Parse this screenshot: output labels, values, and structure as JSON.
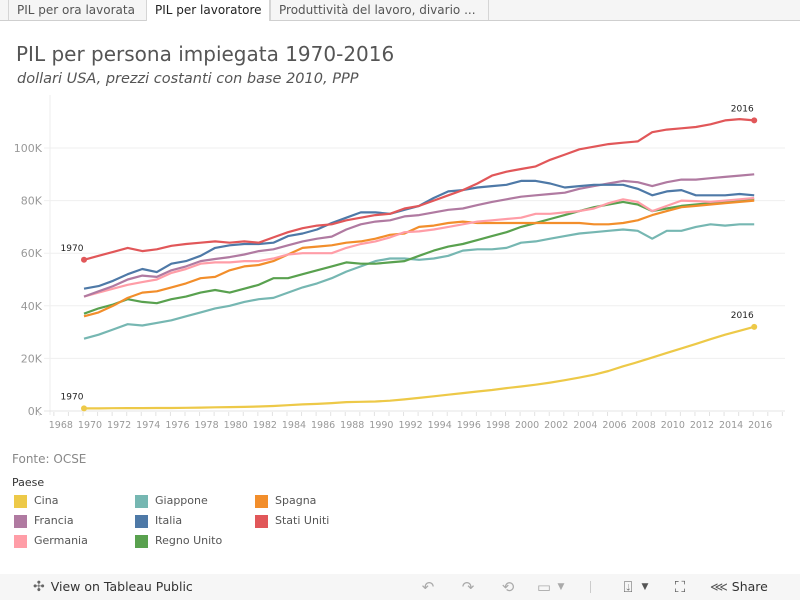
{
  "tabs": [
    {
      "label": "PIL per ora lavorata",
      "active": false
    },
    {
      "label": "PIL per lavoratore",
      "active": true
    },
    {
      "label": "Produttività del lavoro, divario ...",
      "active": false
    }
  ],
  "header": {
    "title": "PIL per persona impiegata 1970-2016",
    "subtitle": "dollari USA, prezzi costanti con base 2010, PPP"
  },
  "source": "Fonte: OCSE",
  "legend": {
    "title": "Paese",
    "items": [
      {
        "label": "Cina",
        "color": "#edc948"
      },
      {
        "label": "Francia",
        "color": "#b07aa1"
      },
      {
        "label": "Germania",
        "color": "#ff9da7"
      },
      {
        "label": "Giappone",
        "color": "#76b7b2"
      },
      {
        "label": "Italia",
        "color": "#4e79a7"
      },
      {
        "label": "Regno Unito",
        "color": "#59a14f"
      },
      {
        "label": "Spagna",
        "color": "#f28e2b"
      },
      {
        "label": "Stati Uniti",
        "color": "#e15759"
      }
    ]
  },
  "footer": {
    "view_label": "View on Tableau Public",
    "share_label": "Share",
    "icons": [
      "undo-icon",
      "redo-icon",
      "revert-icon",
      "refresh-icon",
      "download-icon",
      "fullscreen-icon",
      "share-icon"
    ]
  },
  "chart_data": {
    "type": "line",
    "title": "PIL per persona impiegata 1970-2016",
    "subtitle": "dollari USA, prezzi costanti con base 2010, PPP",
    "xlabel": "",
    "ylabel": "",
    "xlim": [
      1967,
      2018
    ],
    "ylim": [
      0,
      115000
    ],
    "x_ticks": [
      "1968",
      "1970",
      "1972",
      "1974",
      "1976",
      "1978",
      "1980",
      "1982",
      "1984",
      "1986",
      "1988",
      "1990",
      "1992",
      "1994",
      "1996",
      "1998",
      "2000",
      "2002",
      "2004",
      "2006",
      "2008",
      "2010",
      "2012",
      "2014",
      "2016"
    ],
    "y_ticks": [
      0,
      20000,
      40000,
      60000,
      80000,
      100000
    ],
    "y_tick_labels": [
      "0K",
      "20K",
      "40K",
      "60K",
      "80K",
      "100K"
    ],
    "grid": true,
    "legend_position": "bottom-left",
    "annotations": [
      {
        "series": "Stati Uniti",
        "year": 1970,
        "text": "1970"
      },
      {
        "series": "Stati Uniti",
        "year": 2016,
        "text": "2016"
      },
      {
        "series": "Cina",
        "year": 1970,
        "text": "1970"
      },
      {
        "series": "Cina",
        "year": 2016,
        "text": "2016"
      }
    ],
    "x": [
      1970,
      1971,
      1972,
      1973,
      1974,
      1975,
      1976,
      1977,
      1978,
      1979,
      1980,
      1981,
      1982,
      1983,
      1984,
      1985,
      1986,
      1987,
      1988,
      1989,
      1990,
      1991,
      1992,
      1993,
      1994,
      1995,
      1996,
      1997,
      1998,
      1999,
      2000,
      2001,
      2002,
      2003,
      2004,
      2005,
      2006,
      2007,
      2008,
      2009,
      2010,
      2011,
      2012,
      2013,
      2014,
      2015,
      2016
    ],
    "series": [
      {
        "name": "Cina",
        "values": [
          1000,
          1000,
          1050,
          1100,
          1100,
          1150,
          1150,
          1200,
          1300,
          1400,
          1500,
          1550,
          1700,
          1900,
          2200,
          2500,
          2700,
          3000,
          3400,
          3500,
          3600,
          3900,
          4400,
          5000,
          5600,
          6200,
          6800,
          7400,
          8000,
          8700,
          9300,
          10000,
          10800,
          11700,
          12700,
          13800,
          15200,
          17000,
          18600,
          20300,
          22100,
          23800,
          25500,
          27300,
          29000,
          30500,
          32000
        ]
      },
      {
        "name": "Francia",
        "values": [
          43500,
          45500,
          47500,
          50000,
          51500,
          51000,
          53500,
          55000,
          57000,
          57800,
          58500,
          59500,
          60800,
          61500,
          63000,
          64500,
          65500,
          66300,
          69000,
          71000,
          72000,
          72500,
          74000,
          74500,
          75500,
          76500,
          77000,
          78300,
          79500,
          80500,
          81500,
          82000,
          82500,
          83000,
          84500,
          85500,
          86500,
          87500,
          87000,
          85500,
          87000,
          88000,
          88000,
          88500,
          89000,
          89500,
          90000
        ]
      },
      {
        "name": "Germania",
        "values": [
          43500,
          45000,
          46500,
          48000,
          49000,
          50000,
          52500,
          54000,
          56000,
          56500,
          56500,
          57000,
          57000,
          58000,
          59500,
          60000,
          60000,
          60000,
          62000,
          63500,
          64500,
          66000,
          68000,
          68300,
          69000,
          70000,
          71000,
          72000,
          72500,
          73000,
          73500,
          75000,
          75000,
          75500,
          76000,
          77000,
          79000,
          80500,
          79500,
          76000,
          78000,
          80000,
          79800,
          79500,
          80000,
          80500,
          81000
        ]
      },
      {
        "name": "Giappone",
        "values": [
          27500,
          29000,
          31000,
          33000,
          32500,
          33500,
          34500,
          36000,
          37500,
          39000,
          40000,
          41500,
          42500,
          43000,
          45000,
          47000,
          48500,
          50500,
          53000,
          55000,
          57000,
          58000,
          58000,
          57500,
          58000,
          59000,
          61000,
          61500,
          61500,
          62000,
          64000,
          64500,
          65500,
          66500,
          67500,
          68000,
          68500,
          69000,
          68500,
          65500,
          68500,
          68500,
          70000,
          71000,
          70500,
          71000,
          71000
        ]
      },
      {
        "name": "Italia",
        "values": [
          46500,
          47500,
          49500,
          52000,
          54000,
          52800,
          56000,
          57000,
          59000,
          62000,
          63000,
          63500,
          63500,
          64000,
          66500,
          67500,
          69000,
          71500,
          73500,
          75500,
          75500,
          75000,
          76500,
          78000,
          81000,
          83500,
          84000,
          85000,
          85500,
          86000,
          87500,
          87500,
          86500,
          85000,
          85500,
          86000,
          86000,
          86000,
          84500,
          82000,
          83500,
          84000,
          82000,
          82000,
          82000,
          82500,
          82000
        ]
      },
      {
        "name": "Regno Unito",
        "values": [
          37000,
          39000,
          40500,
          42500,
          41500,
          41000,
          42500,
          43500,
          45000,
          46000,
          45000,
          46500,
          48000,
          50500,
          50500,
          52000,
          53500,
          55000,
          56500,
          56000,
          56000,
          56500,
          57000,
          59000,
          61000,
          62500,
          63500,
          65000,
          66500,
          68000,
          70000,
          71500,
          73000,
          74500,
          76000,
          77500,
          78500,
          79500,
          78500,
          76000,
          77000,
          78000,
          78500,
          79000,
          79500,
          80000,
          80500
        ]
      },
      {
        "name": "Spagna",
        "values": [
          36000,
          37500,
          40000,
          43000,
          45000,
          45500,
          47000,
          48500,
          50500,
          51000,
          53500,
          55000,
          55500,
          57000,
          59500,
          62000,
          62500,
          63000,
          64000,
          64500,
          65500,
          67000,
          67500,
          70000,
          70500,
          71500,
          72000,
          71500,
          71500,
          71500,
          71500,
          71500,
          71500,
          71500,
          71500,
          71000,
          71000,
          71500,
          72500,
          74500,
          76000,
          77500,
          78000,
          78500,
          79000,
          79500,
          80000
        ]
      },
      {
        "name": "Stati Uniti",
        "values": [
          57500,
          59000,
          60500,
          62000,
          60800,
          61500,
          62800,
          63500,
          64000,
          64500,
          64000,
          64500,
          64000,
          66000,
          68000,
          69500,
          70500,
          71000,
          72500,
          73500,
          74500,
          75000,
          77000,
          78000,
          80000,
          82000,
          84000,
          86500,
          89500,
          91000,
          92000,
          93000,
          95500,
          97500,
          99500,
          100500,
          101500,
          102000,
          102500,
          106000,
          107000,
          107500,
          108000,
          109000,
          110500,
          111000,
          110500
        ]
      }
    ]
  }
}
